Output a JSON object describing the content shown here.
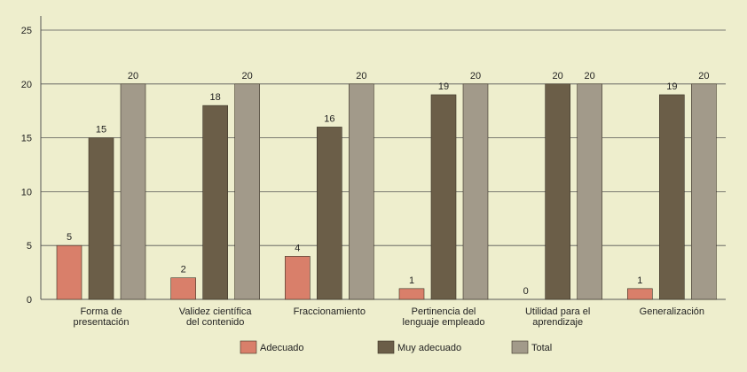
{
  "chart_data": {
    "type": "bar",
    "categories": [
      [
        "Forma de",
        "presentación"
      ],
      [
        "Validez científica",
        "del contenido"
      ],
      [
        "Fraccionamiento"
      ],
      [
        "Pertinencia del",
        "lenguaje empleado"
      ],
      [
        "Utilidad para el",
        "aprendizaje"
      ],
      [
        "Generalización"
      ]
    ],
    "series": [
      {
        "name": "Adecuado",
        "color": "#d97f6a",
        "values": [
          5,
          2,
          4,
          1,
          0,
          1
        ]
      },
      {
        "name": "Muy adecuado",
        "color": "#6b5e48",
        "values": [
          15,
          18,
          16,
          19,
          20,
          19
        ]
      },
      {
        "name": "Total",
        "color": "#a29a8a",
        "values": [
          20,
          20,
          20,
          20,
          20,
          20
        ]
      }
    ],
    "yticks": [
      0,
      5,
      10,
      15,
      20,
      25
    ],
    "ylim": [
      0,
      25
    ],
    "grid": true,
    "legend_position": "bottom"
  }
}
